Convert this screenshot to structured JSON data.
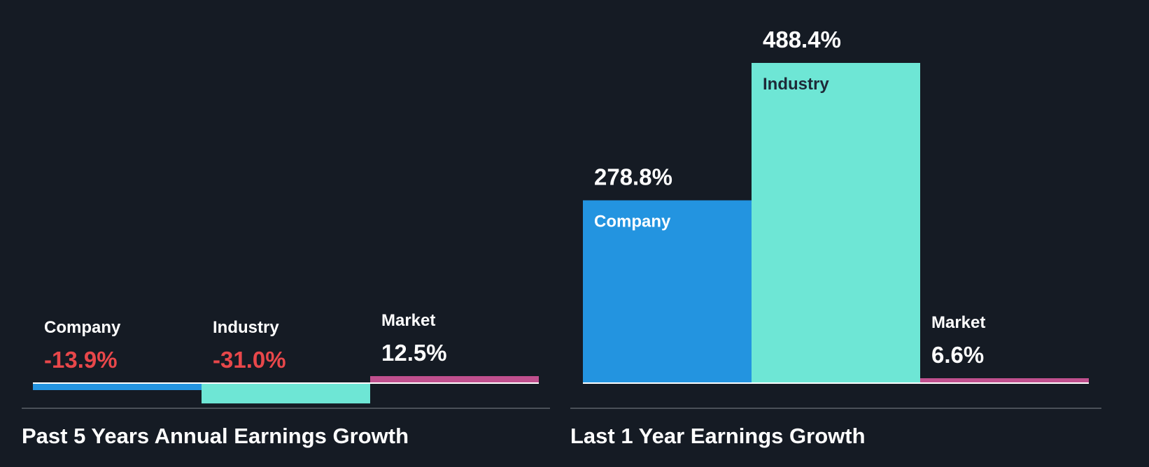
{
  "colors": {
    "background": "#151b24",
    "company": "#2394e0",
    "industry": "#6ee6d5",
    "market": "#c0508e",
    "negative_text": "#e8474a",
    "positive_text": "#ffffff",
    "inside_dark_text": "#1e2a38",
    "baseline": "#ffffff",
    "divider": "#4a5058"
  },
  "chart_data": [
    {
      "type": "bar",
      "title": "Past 5 Years Annual Earnings Growth",
      "categories": [
        "Company",
        "Industry",
        "Market"
      ],
      "values": [
        -13.9,
        -31.0,
        12.5
      ],
      "value_labels": [
        "-13.9%",
        "-31.0%",
        "12.5%"
      ],
      "series_colors": [
        "#2394e0",
        "#6ee6d5",
        "#c0508e"
      ],
      "unit": "%",
      "xlabel": "",
      "ylabel": "",
      "ylim": [
        -31.0,
        488.4
      ],
      "grid": false,
      "legend": "none"
    },
    {
      "type": "bar",
      "title": "Last 1 Year Earnings Growth",
      "categories": [
        "Company",
        "Industry",
        "Market"
      ],
      "values": [
        278.8,
        488.4,
        6.6
      ],
      "value_labels": [
        "278.8%",
        "488.4%",
        "6.6%"
      ],
      "series_colors": [
        "#2394e0",
        "#6ee6d5",
        "#c0508e"
      ],
      "unit": "%",
      "xlabel": "",
      "ylabel": "",
      "ylim": [
        0,
        488.4
      ],
      "grid": false,
      "legend": "none"
    }
  ]
}
